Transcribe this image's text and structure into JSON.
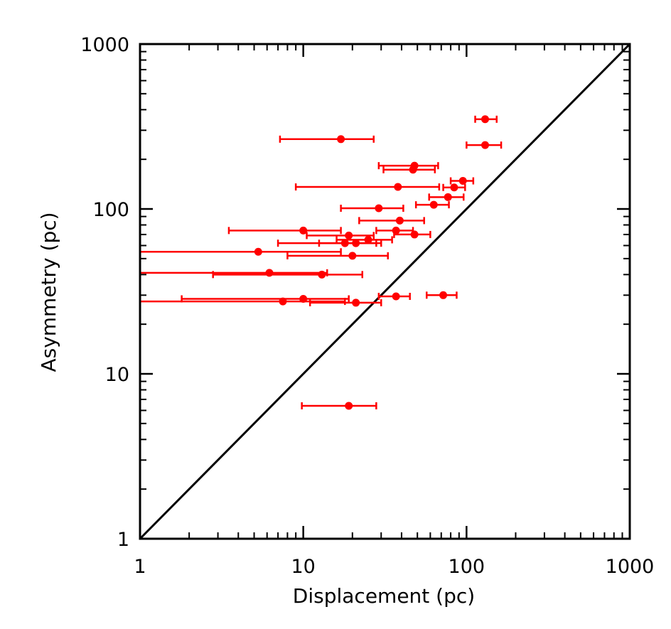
{
  "chart_data": {
    "type": "scatter",
    "xlabel": "Displacement (pc)",
    "ylabel": "Asymmetry (pc)",
    "xscale": "log",
    "yscale": "log",
    "xlim": [
      1,
      1000
    ],
    "ylim": [
      1,
      1000
    ],
    "xticks": [
      "1",
      "10",
      "100",
      "1000"
    ],
    "yticks": [
      "1",
      "10",
      "100",
      "1000"
    ],
    "grid": false,
    "reference_line": {
      "type": "y=x"
    },
    "colors": {
      "points": "#ff0000",
      "axes": "#000000",
      "line": "#000000"
    },
    "series": [
      {
        "points": [
          {
            "x": 130,
            "y": 350,
            "xerr": [
              113,
              153
            ]
          },
          {
            "x": 130,
            "y": 244,
            "xerr": [
              100,
              163
            ]
          },
          {
            "x": 17,
            "y": 265,
            "xerr": [
              7.2,
              27
            ]
          },
          {
            "x": 48,
            "y": 183,
            "xerr": [
              29,
              67
            ]
          },
          {
            "x": 47,
            "y": 173,
            "xerr": [
              31,
              64
            ]
          },
          {
            "x": 95,
            "y": 148,
            "xerr": [
              80,
              110
            ]
          },
          {
            "x": 38,
            "y": 136,
            "xerr": [
              9,
              68
            ]
          },
          {
            "x": 84,
            "y": 135,
            "xerr": [
              72,
              98
            ]
          },
          {
            "x": 77,
            "y": 118,
            "xerr": [
              59,
              96
            ]
          },
          {
            "x": 63,
            "y": 106,
            "xerr": [
              49,
              78
            ]
          },
          {
            "x": 29,
            "y": 101,
            "xerr": [
              17,
              41
            ]
          },
          {
            "x": 39,
            "y": 85,
            "xerr": [
              22,
              55
            ]
          },
          {
            "x": 10,
            "y": 74,
            "xerr": [
              3.5,
              17
            ]
          },
          {
            "x": 37,
            "y": 74,
            "xerr": [
              28,
              47
            ]
          },
          {
            "x": 48,
            "y": 70,
            "xerr": [
              36,
              60
            ]
          },
          {
            "x": 19,
            "y": 69,
            "xerr": [
              10.5,
              27
            ]
          },
          {
            "x": 25,
            "y": 65,
            "xerr": [
              16,
              35
            ]
          },
          {
            "x": 18,
            "y": 62,
            "xerr": [
              7,
              28
            ]
          },
          {
            "x": 21,
            "y": 62,
            "xerr": [
              12.5,
              30
            ]
          },
          {
            "x": 5.3,
            "y": 55,
            "xerr": [
              1,
              17
            ]
          },
          {
            "x": 20,
            "y": 52,
            "xerr": [
              8,
              33
            ]
          },
          {
            "x": 6.2,
            "y": 41,
            "xerr": [
              1,
              14
            ]
          },
          {
            "x": 13,
            "y": 40,
            "xerr": [
              2.8,
              23
            ]
          },
          {
            "x": 72,
            "y": 30,
            "xerr": [
              57,
              87
            ]
          },
          {
            "x": 37,
            "y": 29.5,
            "xerr": [
              29,
              45
            ]
          },
          {
            "x": 10,
            "y": 28.5,
            "xerr": [
              1.8,
              19
            ]
          },
          {
            "x": 7.5,
            "y": 27.5,
            "xerr": [
              1,
              18
            ]
          },
          {
            "x": 21,
            "y": 27,
            "xerr": [
              11,
              30
            ]
          },
          {
            "x": 19,
            "y": 6.4,
            "xerr": [
              9.8,
              28
            ]
          }
        ]
      }
    ]
  }
}
